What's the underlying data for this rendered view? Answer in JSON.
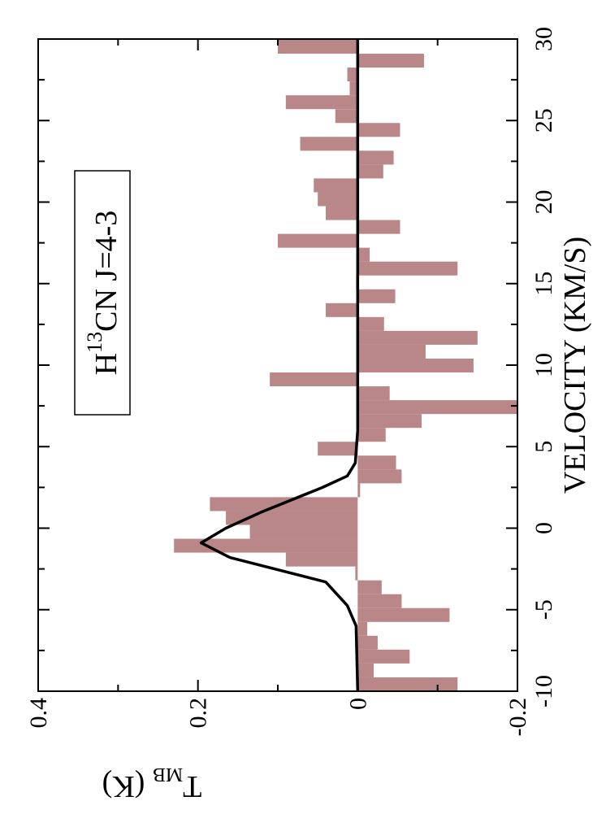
{
  "chart_data": {
    "type": "histogram",
    "bins": [
      -10,
      -9.15,
      -8.3,
      -7.45,
      -6.6,
      -5.75,
      -4.9,
      -4.05,
      -3.2,
      -2.35,
      -1.5,
      -0.65,
      0.2,
      1.05,
      1.9,
      2.75,
      3.6,
      4.45,
      5.3,
      6.15,
      7,
      7.85,
      8.7,
      9.55,
      10.4,
      11.25,
      12.1,
      12.95,
      13.8,
      14.65,
      15.5,
      16.35,
      17.2,
      18.05,
      18.9,
      19.75,
      20.6,
      21.45,
      22.3,
      23.15,
      24,
      24.85,
      25.7,
      26.55,
      27.4,
      28.25,
      29.1,
      29.95
    ],
    "values": [
      -0.125,
      -0.02,
      -0.065,
      -0.025,
      -0.012,
      -0.115,
      -0.055,
      -0.03,
      0.003,
      0.09,
      0.23,
      0.135,
      0.165,
      0.185,
      -0.003,
      -0.055,
      -0.048,
      0.05,
      -0.035,
      -0.08,
      -0.2,
      -0.04,
      0.11,
      -0.145,
      -0.085,
      -0.15,
      -0.033,
      0.04,
      -0.047,
      0.002,
      -0.125,
      -0.015,
      0.1,
      -0.053,
      0.04,
      0.05,
      0.055,
      -0.032,
      -0.045,
      0.072,
      -0.053,
      0.028,
      0.09,
      0.01,
      0.013,
      -0.083,
      0.1
    ],
    "color": "#b98787",
    "fit": {
      "x": [
        -10,
        -6,
        -4.75,
        -3.3,
        -1.8,
        -0.9,
        0,
        1,
        2.5,
        3.2,
        4,
        6,
        30
      ],
      "values": [
        0,
        0.002,
        0.013,
        0.04,
        0.16,
        0.196,
        0.165,
        0.12,
        0.044,
        0.013,
        0.003,
        0,
        0
      ],
      "color": "#000000"
    },
    "xlabel": "VELOCITY (KM/S)",
    "ylabel": {
      "main": "T",
      "subscript": "MB",
      "unit": " (K)"
    },
    "annotation": {
      "main": "H",
      "superscript": "13",
      "rest": "CN J=4-3"
    },
    "xlim": [
      -10,
      30
    ],
    "xticks": [
      -10,
      -5,
      0,
      5,
      10,
      15,
      20,
      25,
      30
    ],
    "xminorticks": [
      -7.5,
      -2.5,
      2.5,
      7.5,
      12.5,
      17.5,
      22.5,
      27.5
    ],
    "ylim": [
      -0.2,
      0.4
    ],
    "yticks": [
      -0.2,
      0,
      0.2,
      0.4
    ],
    "yminorticks": [
      -0.1,
      0.1,
      0.3
    ],
    "rotation": -90
  }
}
